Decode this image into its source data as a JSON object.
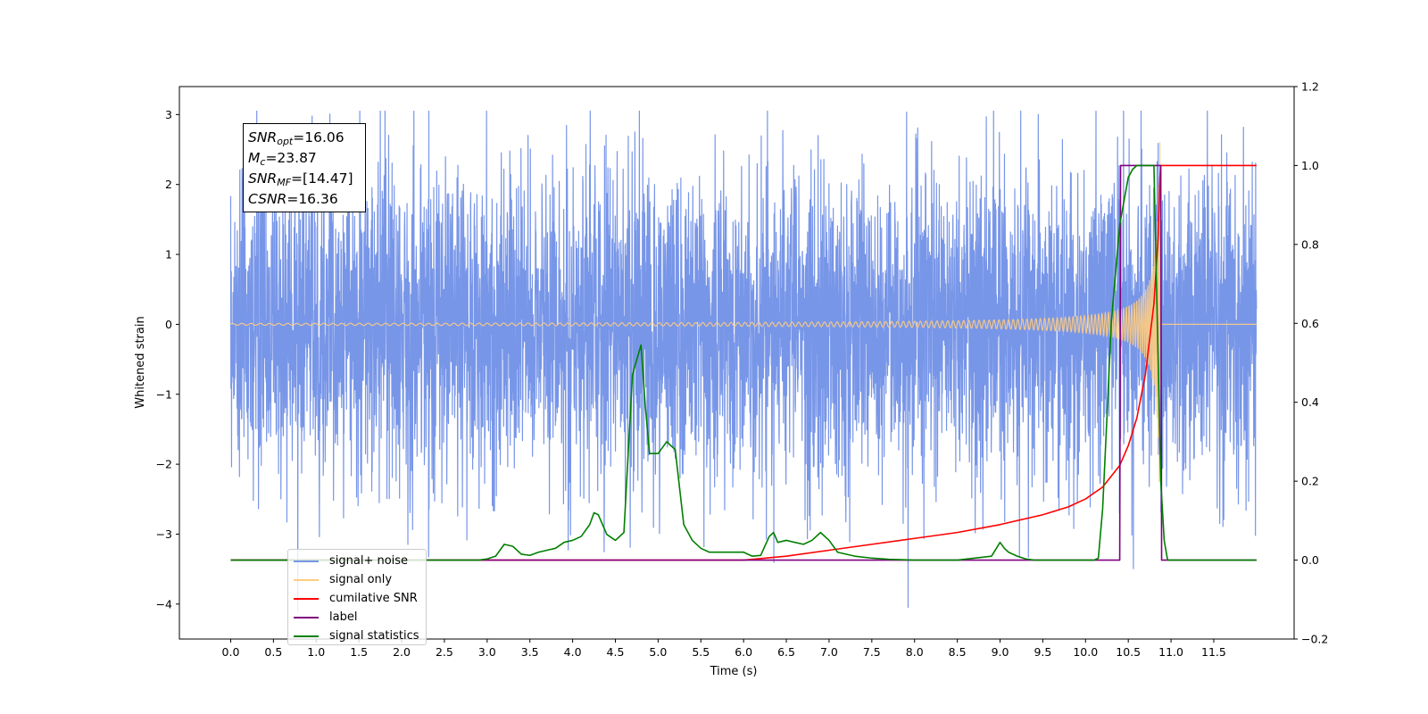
{
  "chart_data": {
    "type": "line",
    "xlabel": "Time (s)",
    "ylabel": "Whitened strain",
    "xlim": [
      -0.6,
      12.44
    ],
    "ylim": [
      -4.5,
      3.4
    ],
    "y2lim": [
      -0.2,
      1.2
    ],
    "x_ticks": [
      "0.0",
      "0.5",
      "1.0",
      "1.5",
      "2.0",
      "2.5",
      "3.0",
      "3.5",
      "4.0",
      "4.5",
      "5.0",
      "5.5",
      "6.0",
      "6.5",
      "7.0",
      "7.5",
      "8.0",
      "8.5",
      "9.0",
      "9.5",
      "10.0",
      "10.5",
      "11.0",
      "11.5"
    ],
    "y_ticks": [
      "−4",
      "−3",
      "−2",
      "−1",
      "0",
      "1",
      "2",
      "3"
    ],
    "y2_ticks": [
      "−0.2",
      "0.0",
      "0.2",
      "0.4",
      "0.6",
      "0.8",
      "1.0",
      "1.2"
    ],
    "legend_position": "lower left",
    "annotation": {
      "snr_opt": "=16.06",
      "mc": "=23.87",
      "snr_mf": "=[14.47]",
      "csnr": "=16.36"
    },
    "series": [
      {
        "name": "signal+ noise",
        "color": "#7896e8",
        "axis": "left",
        "description_values": {
          "x_range": [
            0.0,
            12.0
          ],
          "typical_amplitude": 1.5,
          "max": 3.05,
          "min": -4.1
        }
      },
      {
        "name": "signal only",
        "color": "#ffcc80",
        "axis": "left",
        "chirp": {
          "start": 0.0,
          "merger": 10.87,
          "end": 12.0,
          "peak_amplitude": 2.7
        }
      },
      {
        "name": "cumilative SNR",
        "color": "#ff0000",
        "axis": "right",
        "x": [
          0.0,
          6.0,
          6.5,
          7.0,
          7.5,
          8.0,
          8.5,
          9.0,
          9.5,
          9.8,
          10.0,
          10.2,
          10.4,
          10.5,
          10.6,
          10.7,
          10.8,
          10.85,
          10.87,
          10.88,
          12.0
        ],
        "values": [
          0.0,
          0.0,
          0.01,
          0.025,
          0.04,
          0.055,
          0.07,
          0.09,
          0.115,
          0.135,
          0.155,
          0.185,
          0.24,
          0.29,
          0.36,
          0.47,
          0.65,
          0.82,
          0.97,
          1.0,
          1.0
        ]
      },
      {
        "name": "label",
        "color": "#800080",
        "axis": "right",
        "x": [
          0.0,
          10.4,
          10.41,
          10.88,
          10.89,
          12.0
        ],
        "values": [
          0.0,
          0.0,
          1.0,
          1.0,
          0.0,
          0.0
        ]
      },
      {
        "name": "signal statistics",
        "color": "#008000",
        "axis": "right",
        "x": [
          0.0,
          2.9,
          3.0,
          3.1,
          3.2,
          3.3,
          3.4,
          3.5,
          3.6,
          3.7,
          3.8,
          3.9,
          4.0,
          4.1,
          4.2,
          4.25,
          4.3,
          4.4,
          4.5,
          4.6,
          4.7,
          4.8,
          4.85,
          4.9,
          5.0,
          5.1,
          5.2,
          5.3,
          5.4,
          5.5,
          5.6,
          5.8,
          6.0,
          6.1,
          6.2,
          6.3,
          6.35,
          6.4,
          6.5,
          6.6,
          6.7,
          6.8,
          6.9,
          7.0,
          7.1,
          7.3,
          7.5,
          7.7,
          8.0,
          8.5,
          8.9,
          9.0,
          9.05,
          9.1,
          9.2,
          9.3,
          9.4,
          10.1,
          10.15,
          10.2,
          10.25,
          10.3,
          10.4,
          10.5,
          10.55,
          10.6,
          10.7,
          10.8,
          10.85,
          10.88,
          10.92,
          10.96,
          12.0
        ],
        "values": [
          0.0,
          0.0,
          0.003,
          0.01,
          0.04,
          0.035,
          0.015,
          0.012,
          0.02,
          0.025,
          0.03,
          0.045,
          0.05,
          0.06,
          0.09,
          0.12,
          0.115,
          0.065,
          0.05,
          0.07,
          0.47,
          0.545,
          0.39,
          0.27,
          0.27,
          0.3,
          0.28,
          0.09,
          0.05,
          0.03,
          0.02,
          0.02,
          0.02,
          0.01,
          0.012,
          0.06,
          0.07,
          0.045,
          0.05,
          0.045,
          0.04,
          0.05,
          0.07,
          0.05,
          0.02,
          0.01,
          0.005,
          0.002,
          0.0,
          0.0,
          0.01,
          0.045,
          0.03,
          0.02,
          0.01,
          0.003,
          0.0,
          0.0,
          0.005,
          0.13,
          0.36,
          0.6,
          0.85,
          0.97,
          0.99,
          1.0,
          1.0,
          1.0,
          0.5,
          0.2,
          0.05,
          0.0,
          0.0
        ]
      }
    ]
  }
}
